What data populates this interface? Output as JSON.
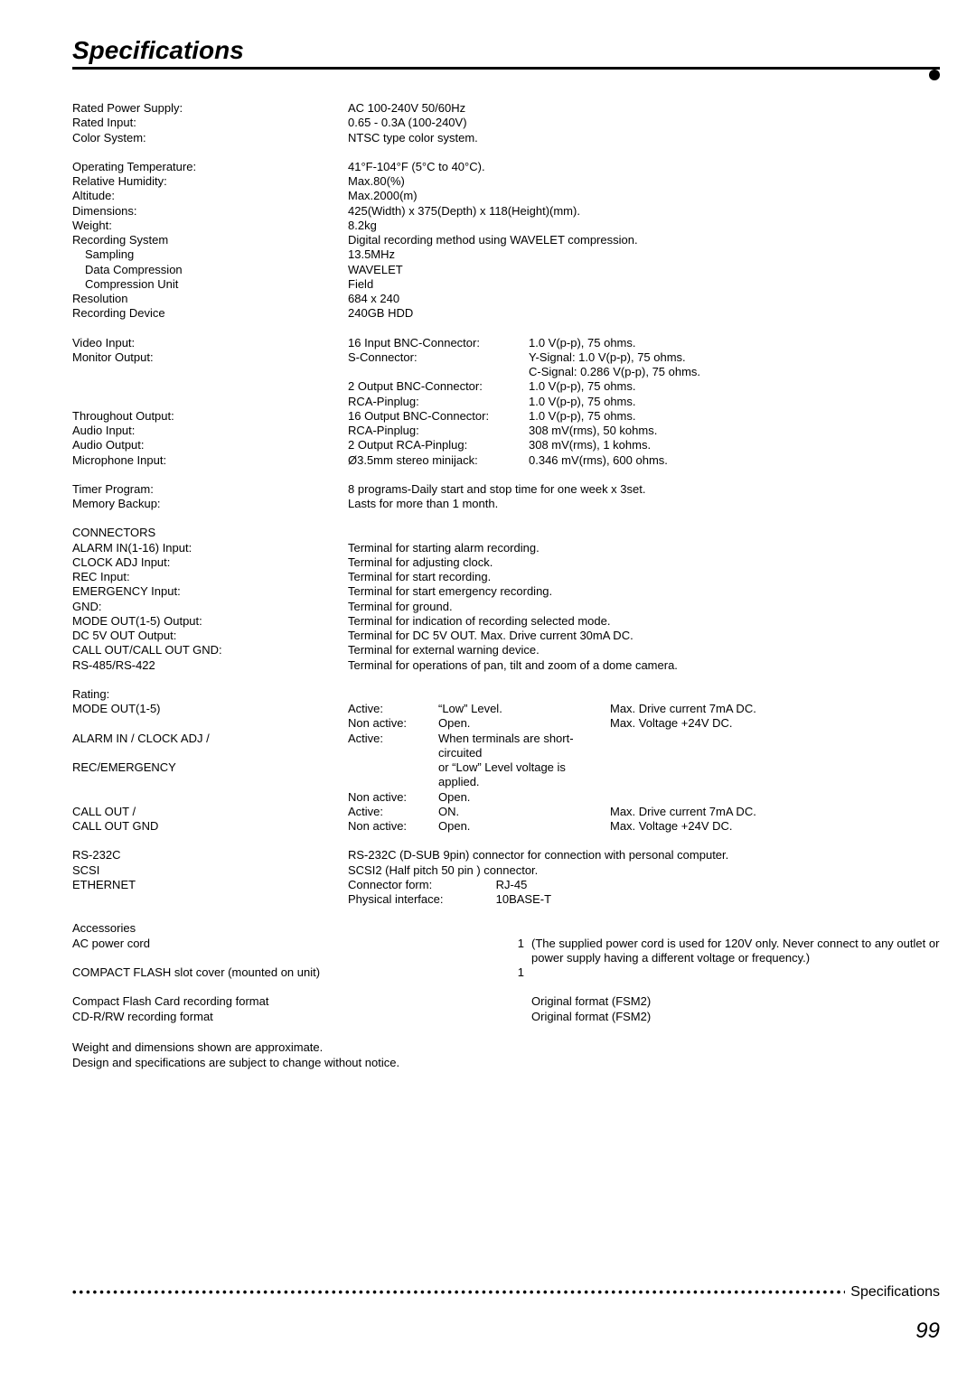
{
  "title": "Specifications",
  "block1": [
    {
      "label": "Rated Power Supply:",
      "value": "AC 100-240V  50/60Hz"
    },
    {
      "label": "Rated Input:",
      "value": "0.65 - 0.3A (100-240V)"
    },
    {
      "label": "Color System:",
      "value": "NTSC type color system."
    }
  ],
  "block2": [
    {
      "label": "Operating Temperature:",
      "value": "41°F-104°F (5°C to 40°C)."
    },
    {
      "label": "Relative Humidity:",
      "value": "Max.80(%)"
    },
    {
      "label": "Altitude:",
      "value": "Max.2000(m)"
    },
    {
      "label": "Dimensions:",
      "value": "425(Width) x 375(Depth) x 118(Height)(mm)."
    },
    {
      "label": "Weight:",
      "value": "8.2kg"
    },
    {
      "label": "Recording System",
      "value": "Digital recording method using WAVELET compression."
    },
    {
      "label": "Sampling",
      "value": "13.5MHz",
      "indent": 1
    },
    {
      "label": "Data Compression",
      "value": "WAVELET",
      "indent": 1
    },
    {
      "label": "Compression Unit",
      "value": "Field",
      "indent": 1
    },
    {
      "label": "Resolution",
      "value": "684 x 240"
    },
    {
      "label": "Recording Device",
      "value": "240GB HDD"
    }
  ],
  "block3": [
    {
      "label": "Video Input:",
      "sub1": "16 Input BNC-Connector:",
      "sub2": "1.0 V(p-p), 75 ohms."
    },
    {
      "label": "Monitor Output:",
      "sub1": "S-Connector:",
      "sub2": "Y-Signal: 1.0 V(p-p), 75 ohms."
    },
    {
      "label": "",
      "sub1": "",
      "sub2": "C-Signal: 0.286 V(p-p), 75 ohms."
    },
    {
      "label": "",
      "sub1": "2 Output BNC-Connector:",
      "sub2": "1.0 V(p-p), 75 ohms."
    },
    {
      "label": "",
      "sub1": "RCA-Pinplug:",
      "sub2": "1.0 V(p-p), 75 ohms."
    },
    {
      "label": "Throughout Output:",
      "sub1": "16 Output BNC-Connector:",
      "sub2": "1.0 V(p-p), 75 ohms."
    },
    {
      "label": "Audio Input:",
      "sub1": "RCA-Pinplug:",
      "sub2": "308 mV(rms), 50 kohms."
    },
    {
      "label": "Audio Output:",
      "sub1": "2 Output RCA-Pinplug:",
      "sub2": "308 mV(rms), 1 kohms."
    },
    {
      "label": "Microphone Input:",
      "sub1": "Ø3.5mm stereo minijack:",
      "sub2": "0.346 mV(rms), 600 ohms."
    }
  ],
  "block4": [
    {
      "label": "Timer Program:",
      "value": "8 programs-Daily start and stop time for one week x 3set."
    },
    {
      "label": "Memory Backup:",
      "value": "Lasts for more than 1 month."
    }
  ],
  "connectors_header": "CONNECTORS",
  "block5": [
    {
      "label": "ALARM IN(1-16) Input:",
      "value": "Terminal for starting alarm recording."
    },
    {
      "label": "CLOCK ADJ Input:",
      "value": "Terminal for adjusting clock."
    },
    {
      "label": "REC Input:",
      "value": "Terminal for start recording."
    },
    {
      "label": "EMERGENCY Input:",
      "value": "Terminal for start emergency recording."
    },
    {
      "label": "GND:",
      "value": "Terminal for ground."
    },
    {
      "label": "MODE OUT(1-5) Output:",
      "value": "Terminal for indication of recording selected mode."
    },
    {
      "label": "DC 5V OUT Output:",
      "value": "Terminal for DC 5V OUT. Max. Drive current 30mA DC."
    },
    {
      "label": "CALL OUT/CALL OUT GND:",
      "value": "Terminal for external warning device."
    },
    {
      "label": "RS-485/RS-422",
      "value": "Terminal for operations of pan, tilt and zoom of a dome camera."
    }
  ],
  "rating_header": "Rating:",
  "block6": [
    {
      "label": "MODE OUT(1-5)",
      "r1": "Active:",
      "r2": "“Low” Level.",
      "r3": "Max. Drive current 7mA DC."
    },
    {
      "label": "",
      "r1": "Non active:",
      "r2": "Open.",
      "r3": "Max. Voltage +24V DC."
    },
    {
      "label": "ALARM IN / CLOCK ADJ /",
      "r1": "Active:",
      "r2": "When terminals are short-circuited",
      "r3": ""
    },
    {
      "label": "REC/EMERGENCY",
      "r1": "",
      "r2": "or “Low” Level voltage is applied.",
      "r3": ""
    },
    {
      "label": "",
      "r1": "Non active:",
      "r2": "Open.",
      "r3": ""
    },
    {
      "label": "CALL OUT /",
      "r1": "Active:",
      "r2": "ON.",
      "r3": "Max. Drive current 7mA DC."
    },
    {
      "label": "CALL OUT GND",
      "r1": "Non active:",
      "r2": "Open.",
      "r3": "Max. Voltage +24V DC."
    }
  ],
  "block7": [
    {
      "label": "RS-232C",
      "value": "RS-232C (D-SUB 9pin) connector for connection with personal computer."
    },
    {
      "label": "SCSI",
      "value": "SCSI2 (Half pitch 50 pin ) connector."
    }
  ],
  "ethernet_label": "ETHERNET",
  "ethernet_row1_l": "Connector form:",
  "ethernet_row1_v": "RJ-45",
  "ethernet_row2_l": "Physical interface:",
  "ethernet_row2_v": "10BASE-T",
  "acc_header": "Accessories",
  "acc1_label": "AC power cord",
  "acc1_qty": "1",
  "acc1_note": "(The supplied power cord is used for 120V only. Never connect to any outlet or power supply having a different voltage or frequency.)",
  "acc2_label": "COMPACT FLASH slot cover (mounted on unit)",
  "acc2_qty": "1",
  "block8": [
    {
      "label": "Compact Flash Card recording format",
      "value": "Original format  (FSM2)"
    },
    {
      "label": "CD-R/RW recording format",
      "value": "Original format  (FSM2)"
    }
  ],
  "footnote1": "Weight and dimensions shown are approximate.",
  "footnote2": "Design and specifications are subject to change without notice.",
  "footer_label": "Specifications",
  "page_number": "99"
}
